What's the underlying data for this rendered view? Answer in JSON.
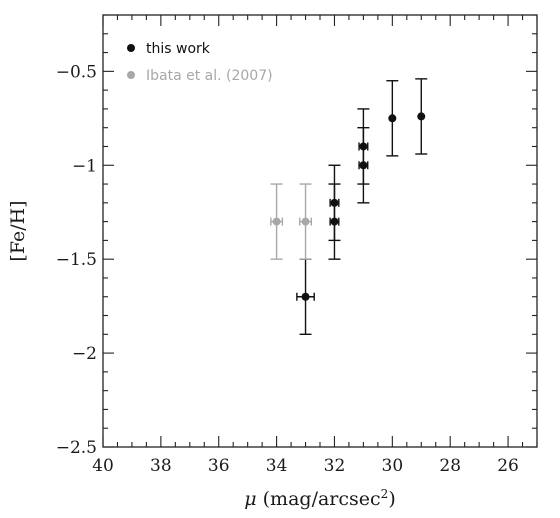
{
  "chart_data": {
    "type": "scatter",
    "xlabel_symbol": "μ",
    "xlabel_text": " (mag/arcsec",
    "xlabel_sup": "2",
    "xlabel_close": ")",
    "ylabel": "[Fe/H]",
    "xlim": [
      40,
      25
    ],
    "ylim": [
      -2.5,
      -0.2
    ],
    "x_ticks": [
      40,
      38,
      36,
      34,
      32,
      30,
      28,
      26
    ],
    "x_tick_labels": [
      "40",
      "38",
      "36",
      "34",
      "32",
      "30",
      "28",
      "26"
    ],
    "y_ticks": [
      -2.5,
      -2,
      -1.5,
      -1,
      -0.5
    ],
    "y_tick_labels": [
      "−2.5",
      "−2",
      "−1.5",
      "−1",
      "−0.5"
    ],
    "x_minor_step": 0.5,
    "y_minor_step": 0.1,
    "grid": false,
    "legend_position": "top-left",
    "series": [
      {
        "name": "this work",
        "color": "#111111",
        "points": [
          {
            "x": 33,
            "y": -1.7,
            "xerr": 0.3,
            "yerr": 0.2
          },
          {
            "x": 32,
            "y": -1.2,
            "xerr": 0.15,
            "yerr": 0.2
          },
          {
            "x": 32,
            "y": -1.3,
            "xerr": 0.15,
            "yerr": 0.2
          },
          {
            "x": 31,
            "y": -0.9,
            "xerr": 0.15,
            "yerr": 0.2
          },
          {
            "x": 31,
            "y": -1.0,
            "xerr": 0.15,
            "yerr": 0.2
          },
          {
            "x": 30,
            "y": -0.75,
            "xerr": 0,
            "yerr": 0.2
          },
          {
            "x": 29,
            "y": -0.74,
            "xerr": 0,
            "yerr": 0.2
          }
        ]
      },
      {
        "name": "Ibata et al. (2007)",
        "color": "#a8a8a8",
        "points": [
          {
            "x": 34,
            "y": -1.3,
            "xerr": 0.2,
            "yerr": 0.2
          },
          {
            "x": 33,
            "y": -1.3,
            "xerr": 0.2,
            "yerr": 0.2
          }
        ]
      }
    ]
  }
}
